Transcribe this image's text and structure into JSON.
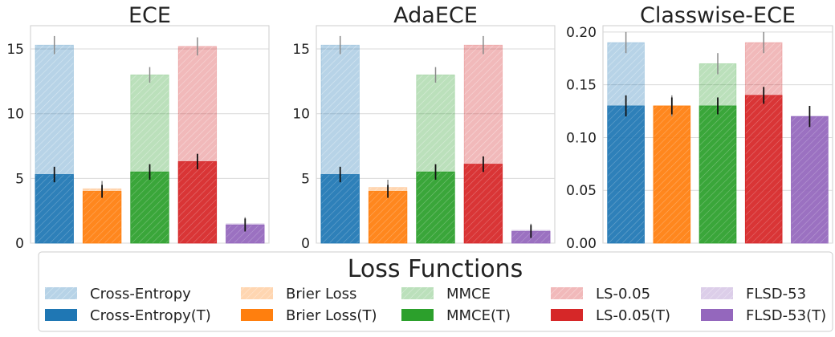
{
  "colors": {
    "Cross-Entropy": "#1f77b4",
    "Brier Loss": "#ff7f0e",
    "MMCE": "#2ca02c",
    "LS-0.05": "#d62728",
    "FLSD-53": "#9467bd",
    "grid": "#d9d9d9",
    "axis": "#cccccc"
  },
  "legend": {
    "title": "Loss Functions",
    "entries": [
      {
        "label": "Cross-Entropy",
        "method": "Cross-Entropy",
        "variant": "pre"
      },
      {
        "label": "Brier Loss",
        "method": "Brier Loss",
        "variant": "pre"
      },
      {
        "label": "MMCE",
        "method": "MMCE",
        "variant": "pre"
      },
      {
        "label": "LS-0.05",
        "method": "LS-0.05",
        "variant": "pre"
      },
      {
        "label": "FLSD-53",
        "method": "FLSD-53",
        "variant": "pre"
      },
      {
        "label": "Cross-Entropy(T)",
        "method": "Cross-Entropy",
        "variant": "post"
      },
      {
        "label": "Brier Loss(T)",
        "method": "Brier Loss",
        "variant": "post"
      },
      {
        "label": "MMCE(T)",
        "method": "MMCE",
        "variant": "post"
      },
      {
        "label": "LS-0.05(T)",
        "method": "LS-0.05",
        "variant": "post"
      },
      {
        "label": "FLSD-53(T)",
        "method": "FLSD-53",
        "variant": "post"
      }
    ]
  },
  "chart_data": [
    {
      "type": "bar",
      "title": "ECE",
      "categories": [
        "Cross-Entropy",
        "Brier Loss",
        "MMCE",
        "LS-0.05",
        "FLSD-53"
      ],
      "ylim": [
        0,
        16.8
      ],
      "yticks": [
        0,
        5,
        10,
        15
      ],
      "ytick_labels": [
        "0",
        "5",
        "10",
        "15"
      ],
      "grid": true,
      "series": [
        {
          "name": "pre-T",
          "values": [
            15.3,
            4.2,
            13.0,
            15.2,
            1.5
          ],
          "errors": [
            0.7,
            0.6,
            0.6,
            0.7,
            0.5
          ]
        },
        {
          "name": "post-T",
          "values": [
            5.3,
            4.0,
            5.5,
            6.3,
            1.4
          ],
          "errors": [
            0.6,
            0.5,
            0.6,
            0.6,
            0.5
          ]
        }
      ]
    },
    {
      "type": "bar",
      "title": "AdaECE",
      "categories": [
        "Cross-Entropy",
        "Brier Loss",
        "MMCE",
        "LS-0.05",
        "FLSD-53"
      ],
      "ylim": [
        0,
        16.8
      ],
      "yticks": [
        0,
        5,
        10,
        15
      ],
      "ytick_labels": [
        "0",
        "5",
        "10",
        "15"
      ],
      "grid": true,
      "series": [
        {
          "name": "pre-T",
          "values": [
            15.3,
            4.3,
            13.0,
            15.3,
            1.0
          ],
          "errors": [
            0.7,
            0.6,
            0.6,
            0.7,
            0.5
          ]
        },
        {
          "name": "post-T",
          "values": [
            5.3,
            4.0,
            5.5,
            6.1,
            0.9
          ],
          "errors": [
            0.6,
            0.5,
            0.6,
            0.6,
            0.5
          ]
        }
      ]
    },
    {
      "type": "bar",
      "title": "Classwise-ECE",
      "categories": [
        "Cross-Entropy",
        "Brier Loss",
        "MMCE",
        "LS-0.05",
        "FLSD-53"
      ],
      "ylim": [
        0,
        0.206
      ],
      "yticks": [
        0,
        0.05,
        0.1,
        0.15,
        0.2
      ],
      "ytick_labels": [
        "0.00",
        "0.05",
        "0.10",
        "0.15",
        "0.20"
      ],
      "grid": true,
      "series": [
        {
          "name": "pre-T",
          "values": [
            0.19,
            0.13,
            0.17,
            0.19,
            0.12
          ],
          "errors": [
            0.01,
            0.01,
            0.01,
            0.01,
            0.01
          ]
        },
        {
          "name": "post-T",
          "values": [
            0.13,
            0.13,
            0.13,
            0.14,
            0.12
          ],
          "errors": [
            0.01,
            0.008,
            0.008,
            0.008,
            0.01
          ]
        }
      ]
    }
  ]
}
